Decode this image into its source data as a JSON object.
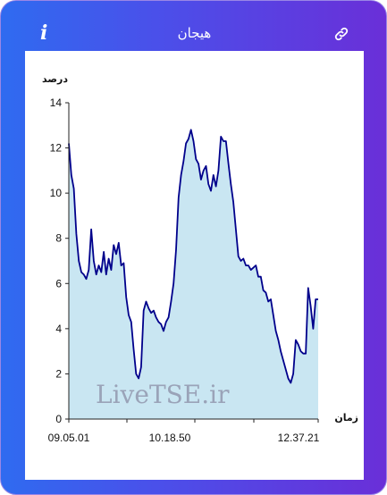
{
  "header": {
    "title": "هیجان",
    "info_icon": "info-icon",
    "link_icon": "link-icon"
  },
  "colors": {
    "accent_start": "#2f6bf0",
    "accent_end": "#6a2fd8",
    "line": "#00008b",
    "fill": "#c9e6f2",
    "watermark": "#9aa3b8"
  },
  "chart_data": {
    "type": "area",
    "title": "",
    "ylabel": "درصد",
    "xlabel": "زمان",
    "ylim": [
      0,
      14
    ],
    "yticks": [
      0,
      2,
      4,
      6,
      8,
      10,
      12,
      14
    ],
    "x_tick_labels": [
      "09.05.01",
      "10.18.50",
      "12.37.21"
    ],
    "watermark": "LiveTSE.ir",
    "grid": false,
    "series": [
      {
        "values": [
          12.2,
          10.8,
          10.2,
          8.2,
          7.0,
          6.5,
          6.4,
          6.2,
          6.6,
          8.4,
          7.0,
          6.4,
          6.8,
          6.5,
          7.4,
          6.4,
          7.1,
          6.6,
          7.7,
          7.3,
          7.8,
          6.8,
          6.9,
          5.4,
          4.6,
          4.3,
          3.1,
          2.0,
          1.8,
          2.3,
          4.8,
          5.2,
          4.9,
          4.7,
          4.8,
          4.5,
          4.3,
          4.2,
          3.9,
          4.3,
          4.5,
          5.2,
          6.0,
          7.5,
          9.8,
          10.8,
          11.4,
          12.2,
          12.4,
          12.8,
          12.3,
          11.5,
          11.3,
          10.6,
          11.0,
          11.2,
          10.4,
          10.1,
          10.8,
          10.3,
          11.0,
          12.5,
          12.3,
          12.3,
          11.3,
          10.4,
          9.6,
          8.4,
          7.2,
          7.0,
          7.1,
          6.8,
          6.8,
          6.6,
          6.7,
          6.8,
          6.3,
          6.3,
          5.7,
          5.6,
          5.2,
          5.3,
          4.6,
          3.9,
          3.5,
          3.0,
          2.6,
          2.2,
          1.8,
          1.6,
          2.0,
          3.5,
          3.3,
          3.0,
          2.9,
          2.9,
          5.8,
          5.0,
          4.0,
          5.3,
          5.3
        ]
      }
    ]
  }
}
